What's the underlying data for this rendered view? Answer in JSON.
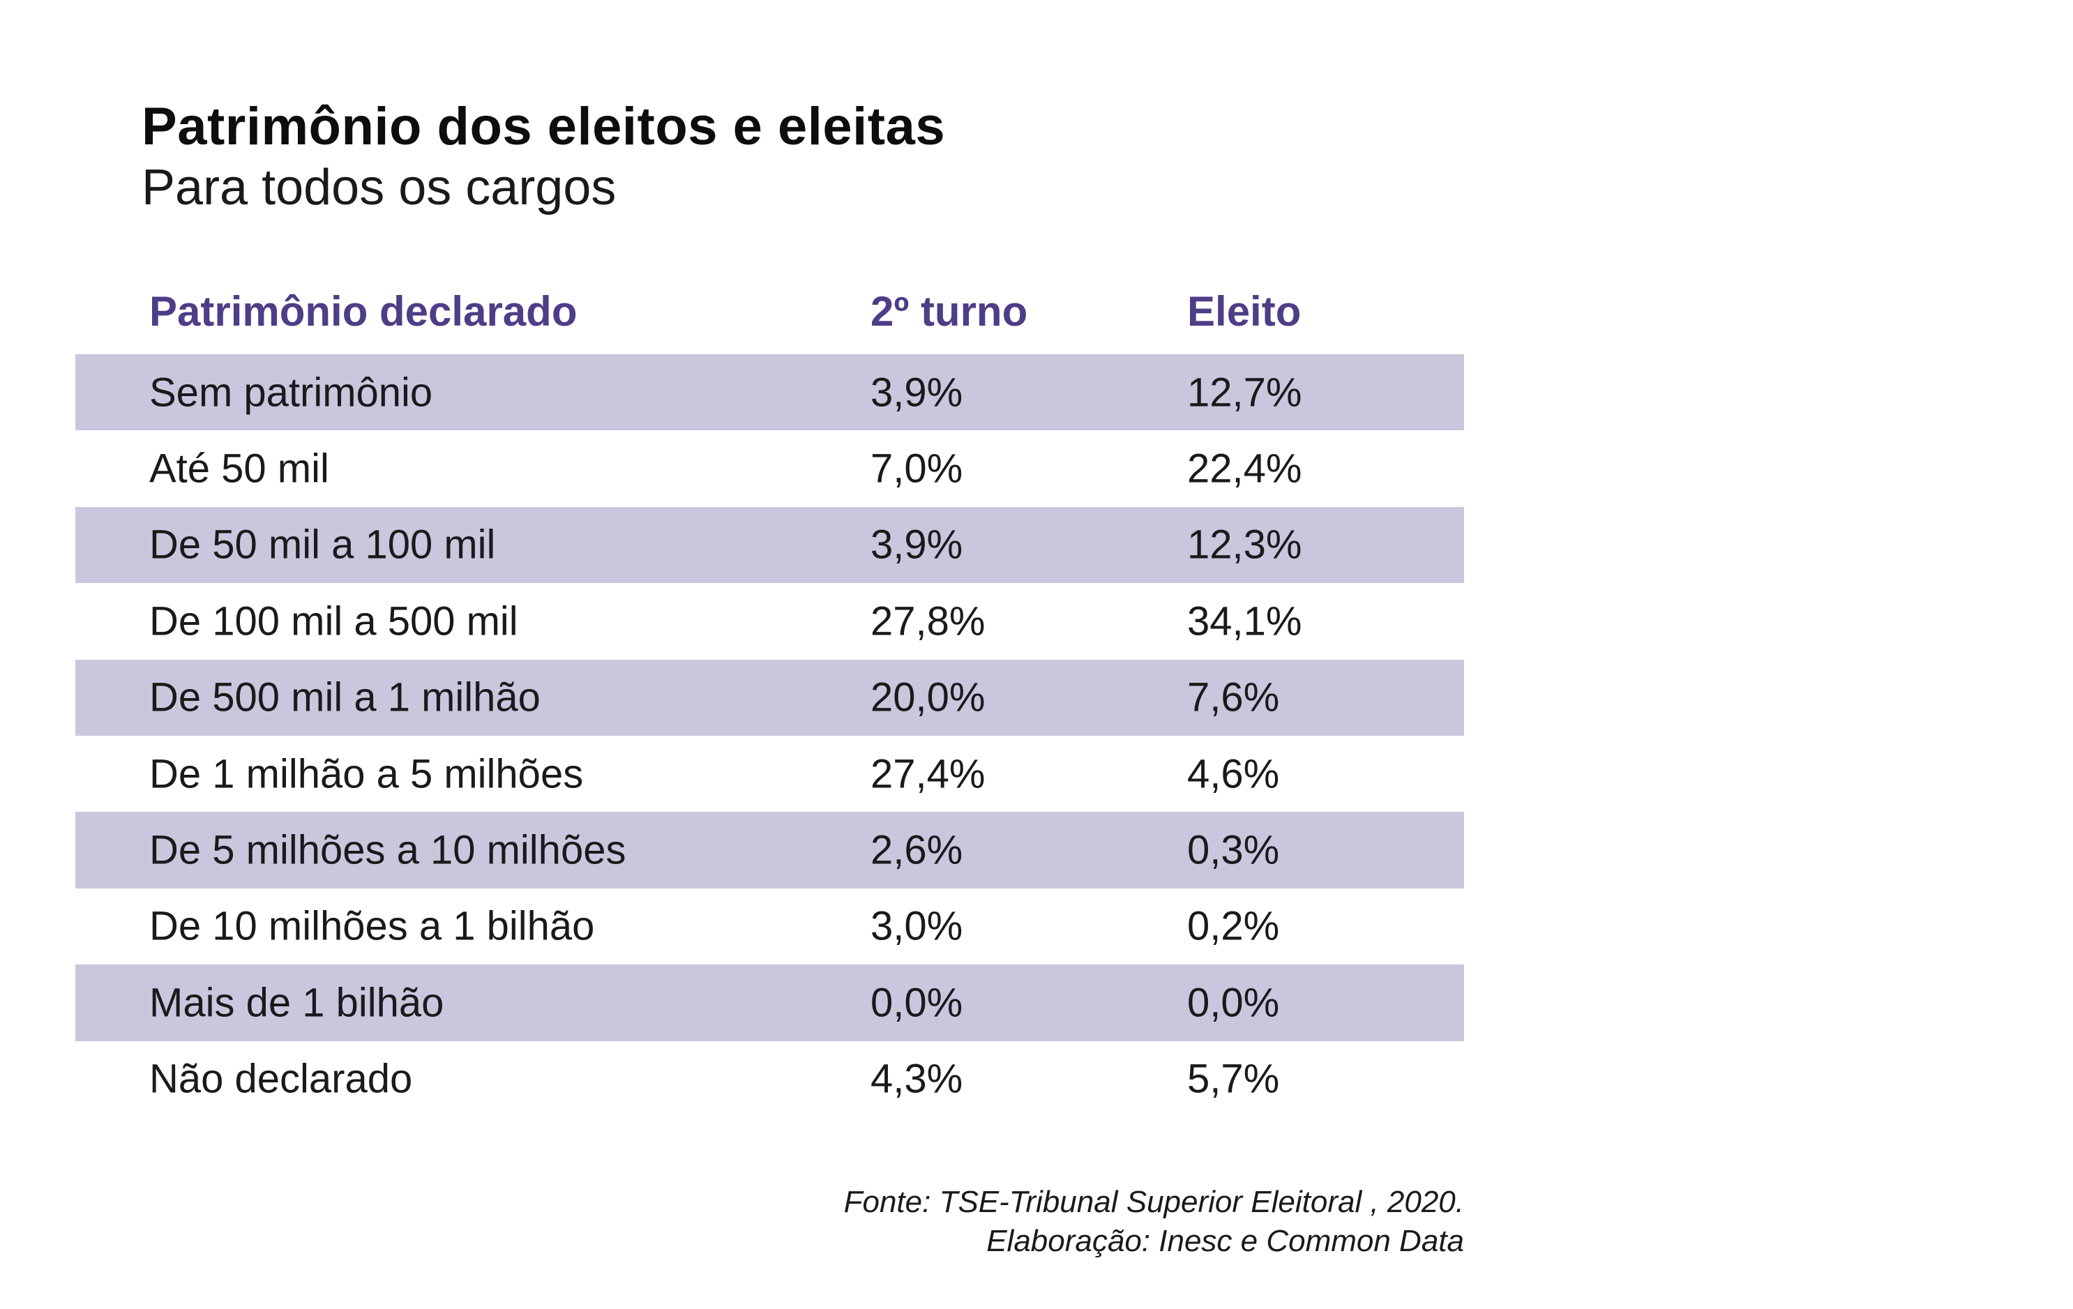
{
  "colors": {
    "header_text": "#4e3d87",
    "shaded_row": "#cbc6de",
    "text": "#1a1a1a",
    "background": "#ffffff"
  },
  "chart_data": {
    "type": "table",
    "title": "Patrimônio dos eleitos e eleitas",
    "subtitle": "Para todos os cargos",
    "columns": [
      "Patrimônio declarado",
      "2º turno",
      "Eleito"
    ],
    "rows": [
      {
        "label": "Sem patrimônio",
        "segundo_turno": "3,9%",
        "eleito": "12,7%"
      },
      {
        "label": "Até 50 mil",
        "segundo_turno": "7,0%",
        "eleito": "22,4%"
      },
      {
        "label": "De 50 mil a 100 mil",
        "segundo_turno": "3,9%",
        "eleito": "12,3%"
      },
      {
        "label": "De 100 mil a 500 mil",
        "segundo_turno": "27,8%",
        "eleito": "34,1%"
      },
      {
        "label": "De 500 mil a 1 milhão",
        "segundo_turno": "20,0%",
        "eleito": "7,6%"
      },
      {
        "label": "De 1 milhão a 5 milhões",
        "segundo_turno": "27,4%",
        "eleito": "4,6%"
      },
      {
        "label": "De 5 milhões a 10 milhões",
        "segundo_turno": "2,6%",
        "eleito": "0,3%"
      },
      {
        "label": "De 10 milhões a 1 bilhão",
        "segundo_turno": "3,0%",
        "eleito": "0,2%"
      },
      {
        "label": "Mais de 1 bilhão",
        "segundo_turno": "0,0%",
        "eleito": "0,0%"
      },
      {
        "label": "Não declarado",
        "segundo_turno": "4,3%",
        "eleito": "5,7%"
      }
    ],
    "source": "Fonte: TSE-Tribunal Superior Eleitoral , 2020.",
    "credit": "Elaboração: Inesc e Common Data"
  }
}
